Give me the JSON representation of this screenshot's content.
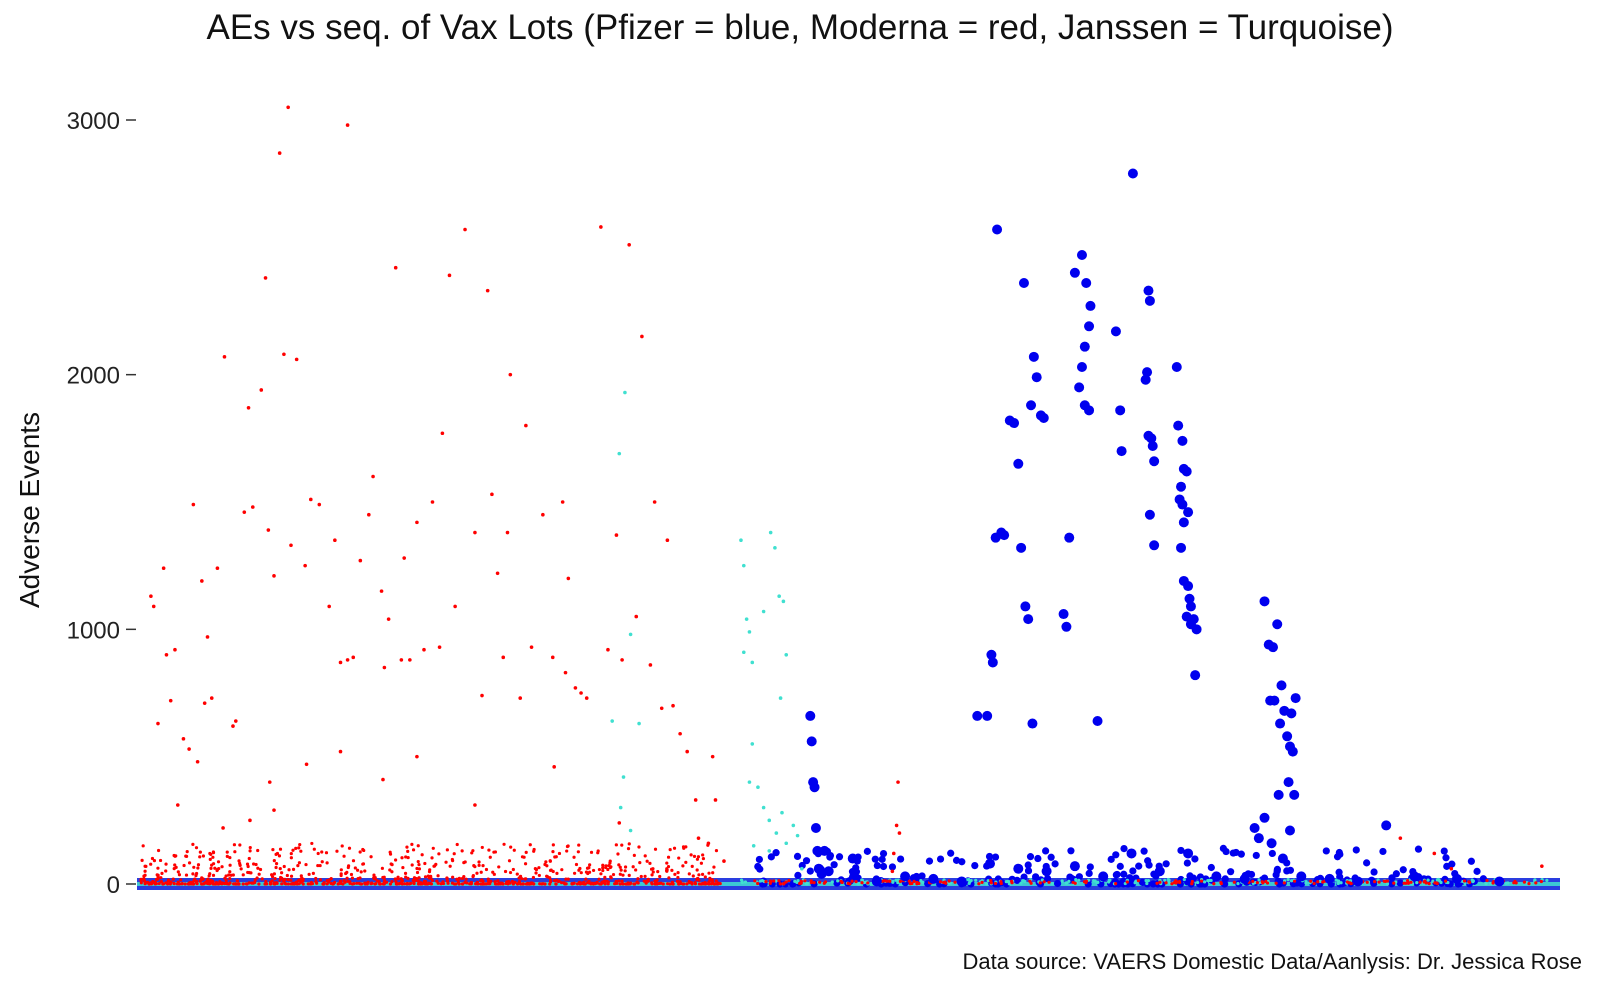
{
  "chart_data": {
    "type": "scatter",
    "title": "AEs vs seq. of Vax Lots (Pfizer = blue, Moderna = red, Janssen = Turquoise)",
    "xlabel": "",
    "ylabel": "Adverse Events",
    "ylim": [
      0,
      3100
    ],
    "xlim": [
      0,
      1000
    ],
    "y_ticks": [
      0,
      1000,
      2000,
      3000
    ],
    "y_tick_labels": [
      "0",
      "1000",
      "2000",
      "3000"
    ],
    "x_ticks_shown": false,
    "grid": false,
    "caption": "Data source: VAERS Domestic Data/Aanlysis: Dr. Jessica Rose",
    "colors": {
      "Pfizer": "#0000ee",
      "Moderna": "#ff0000",
      "Janssen": "#40e0d0"
    },
    "series": [
      {
        "color": "#ff0000",
        "marker_size": "small",
        "points": [
          [
            7,
            1130
          ],
          [
            9,
            1090
          ],
          [
            12,
            630
          ],
          [
            16,
            1240
          ],
          [
            18,
            900
          ],
          [
            21,
            720
          ],
          [
            24,
            920
          ],
          [
            30,
            570
          ],
          [
            34,
            530
          ],
          [
            37,
            1490
          ],
          [
            40,
            480
          ],
          [
            43,
            1190
          ],
          [
            45,
            710
          ],
          [
            47,
            970
          ],
          [
            50,
            730
          ],
          [
            54,
            1240
          ],
          [
            59,
            2070
          ],
          [
            65,
            620
          ],
          [
            67,
            640
          ],
          [
            73,
            1460
          ],
          [
            76,
            1870
          ],
          [
            79,
            1480
          ],
          [
            85,
            1940
          ],
          [
            88,
            2380
          ],
          [
            90,
            1390
          ],
          [
            94,
            1210
          ],
          [
            98,
            2870
          ],
          [
            101,
            2080
          ],
          [
            106,
            1330
          ],
          [
            110,
            2060
          ],
          [
            116,
            1250
          ],
          [
            120,
            1510
          ],
          [
            126,
            1490
          ],
          [
            133,
            1090
          ],
          [
            137,
            1350
          ],
          [
            141,
            870
          ],
          [
            146,
            880
          ],
          [
            150,
            890
          ],
          [
            155,
            1270
          ],
          [
            161,
            1450
          ],
          [
            164,
            1600
          ],
          [
            170,
            1150
          ],
          [
            172,
            850
          ],
          [
            175,
            1040
          ],
          [
            180,
            2420
          ],
          [
            184,
            880
          ],
          [
            186,
            1280
          ],
          [
            190,
            880
          ],
          [
            195,
            1420
          ],
          [
            200,
            920
          ],
          [
            206,
            1500
          ],
          [
            211,
            930
          ],
          [
            213,
            1770
          ],
          [
            218,
            2390
          ],
          [
            222,
            1090
          ],
          [
            229,
            2570
          ],
          [
            236,
            1380
          ],
          [
            241,
            740
          ],
          [
            245,
            2330
          ],
          [
            248,
            1530
          ],
          [
            252,
            1220
          ],
          [
            256,
            890
          ],
          [
            259,
            1380
          ],
          [
            261,
            2000
          ],
          [
            268,
            730
          ],
          [
            272,
            1800
          ],
          [
            276,
            930
          ],
          [
            284,
            1450
          ],
          [
            291,
            890
          ],
          [
            298,
            1500
          ],
          [
            302,
            1200
          ],
          [
            311,
            750
          ],
          [
            315,
            730
          ],
          [
            325,
            2580
          ],
          [
            330,
            920
          ],
          [
            336,
            1370
          ],
          [
            340,
            880
          ],
          [
            345,
            2510
          ],
          [
            350,
            1050
          ],
          [
            354,
            2150
          ],
          [
            360,
            860
          ],
          [
            363,
            1500
          ],
          [
            368,
            690
          ],
          [
            372,
            1350
          ],
          [
            376,
            700
          ],
          [
            381,
            590
          ],
          [
            386,
            520
          ],
          [
            141,
            520
          ],
          [
            171,
            410
          ],
          [
            117,
            470
          ],
          [
            91,
            400
          ],
          [
            94,
            290
          ],
          [
            58,
            220
          ],
          [
            77,
            250
          ],
          [
            26,
            310
          ],
          [
            300,
            830
          ],
          [
            307,
            770
          ],
          [
            104,
            3050
          ],
          [
            146,
            2980
          ],
          [
            195,
            500
          ],
          [
            236,
            310
          ],
          [
            292,
            460
          ],
          [
            338,
            240
          ],
          [
            392,
            330
          ],
          [
            394,
            180
          ],
          [
            401,
            160
          ],
          [
            404,
            500
          ],
          [
            406,
            330
          ],
          [
            412,
            90
          ],
          [
            531,
            50
          ],
          [
            532,
            120
          ],
          [
            534,
            230
          ],
          [
            535,
            400
          ],
          [
            536,
            200
          ],
          [
            914,
            120
          ],
          [
            926,
            60
          ],
          [
            990,
            70
          ],
          [
            890,
            180
          ]
        ]
      },
      {
        "color": "#40e0d0",
        "marker_size": "small",
        "points": [
          [
            338,
            1690
          ],
          [
            342,
            1930
          ],
          [
            346,
            980
          ],
          [
            352,
            630
          ],
          [
            333,
            640
          ],
          [
            341,
            420
          ],
          [
            424,
            1350
          ],
          [
            426,
            1250
          ],
          [
            428,
            1040
          ],
          [
            430,
            990
          ],
          [
            432,
            870
          ],
          [
            426,
            910
          ],
          [
            440,
            1070
          ],
          [
            445,
            1380
          ],
          [
            448,
            1320
          ],
          [
            451,
            1130
          ],
          [
            454,
            1110
          ],
          [
            456,
            900
          ],
          [
            452,
            730
          ],
          [
            432,
            550
          ],
          [
            430,
            400
          ],
          [
            436,
            380
          ],
          [
            440,
            300
          ],
          [
            444,
            250
          ],
          [
            449,
            200
          ],
          [
            453,
            280
          ],
          [
            456,
            160
          ],
          [
            461,
            230
          ],
          [
            464,
            190
          ],
          [
            444,
            130
          ],
          [
            433,
            150
          ],
          [
            467,
            60
          ],
          [
            346,
            210
          ],
          [
            339,
            300
          ]
        ]
      },
      {
        "color": "#0000ee",
        "marker_size": "large",
        "points": [
          [
            473,
            660
          ],
          [
            474,
            560
          ],
          [
            475,
            400
          ],
          [
            476,
            380
          ],
          [
            477,
            220
          ],
          [
            478,
            130
          ],
          [
            479,
            60
          ],
          [
            481,
            40
          ],
          [
            483,
            130
          ],
          [
            486,
            50
          ],
          [
            503,
            100
          ],
          [
            605,
            2570
          ],
          [
            601,
            900
          ],
          [
            602,
            870
          ],
          [
            598,
            660
          ],
          [
            591,
            660
          ],
          [
            604,
            1360
          ],
          [
            608,
            1380
          ],
          [
            610,
            1370
          ],
          [
            614,
            1820
          ],
          [
            617,
            1810
          ],
          [
            620,
            1650
          ],
          [
            622,
            1320
          ],
          [
            625,
            1090
          ],
          [
            627,
            1040
          ],
          [
            630,
            630
          ],
          [
            629,
            1880
          ],
          [
            624,
            2360
          ],
          [
            631,
            2070
          ],
          [
            633,
            1990
          ],
          [
            636,
            1840
          ],
          [
            638,
            1830
          ],
          [
            652,
            1060
          ],
          [
            654,
            1010
          ],
          [
            656,
            1360
          ],
          [
            660,
            2400
          ],
          [
            665,
            2470
          ],
          [
            668,
            2360
          ],
          [
            671,
            2270
          ],
          [
            670,
            2190
          ],
          [
            667,
            2110
          ],
          [
            665,
            2030
          ],
          [
            663,
            1950
          ],
          [
            667,
            1880
          ],
          [
            670,
            1860
          ],
          [
            676,
            640
          ],
          [
            689,
            2170
          ],
          [
            692,
            1860
          ],
          [
            693,
            1700
          ],
          [
            701,
            2790
          ],
          [
            712,
            2330
          ],
          [
            713,
            2290
          ],
          [
            711,
            2010
          ],
          [
            710,
            1980
          ],
          [
            712,
            1760
          ],
          [
            714,
            1750
          ],
          [
            715,
            1720
          ],
          [
            716,
            1660
          ],
          [
            713,
            1450
          ],
          [
            716,
            1330
          ],
          [
            732,
            2030
          ],
          [
            733,
            1800
          ],
          [
            736,
            1740
          ],
          [
            737,
            1630
          ],
          [
            739,
            1620
          ],
          [
            735,
            1560
          ],
          [
            734,
            1510
          ],
          [
            736,
            1490
          ],
          [
            737,
            1420
          ],
          [
            740,
            1460
          ],
          [
            737,
            1190
          ],
          [
            740,
            1170
          ],
          [
            741,
            1120
          ],
          [
            742,
            1090
          ],
          [
            744,
            1040
          ],
          [
            746,
            1000
          ],
          [
            745,
            820
          ],
          [
            735,
            1320
          ],
          [
            739,
            1050
          ],
          [
            742,
            1020
          ],
          [
            794,
            1110
          ],
          [
            797,
            940
          ],
          [
            800,
            930
          ],
          [
            803,
            1020
          ],
          [
            798,
            720
          ],
          [
            801,
            720
          ],
          [
            806,
            780
          ],
          [
            808,
            680
          ],
          [
            813,
            670
          ],
          [
            816,
            730
          ],
          [
            810,
            580
          ],
          [
            812,
            540
          ],
          [
            814,
            520
          ],
          [
            811,
            400
          ],
          [
            815,
            350
          ],
          [
            804,
            350
          ],
          [
            805,
            630
          ],
          [
            794,
            260
          ],
          [
            799,
            160
          ],
          [
            807,
            100
          ],
          [
            812,
            210
          ],
          [
            787,
            220
          ],
          [
            790,
            180
          ],
          [
            880,
            230
          ],
          [
            520,
            10
          ],
          [
            540,
            30
          ],
          [
            560,
            20
          ],
          [
            580,
            10
          ],
          [
            600,
            80
          ],
          [
            620,
            60
          ],
          [
            640,
            50
          ],
          [
            660,
            70
          ],
          [
            680,
            30
          ],
          [
            700,
            120
          ],
          [
            720,
            50
          ],
          [
            740,
            120
          ],
          [
            760,
            30
          ],
          [
            780,
            20
          ],
          [
            820,
            30
          ],
          [
            840,
            20
          ],
          [
            860,
            10
          ],
          [
            900,
            30
          ],
          [
            930,
            20
          ],
          [
            960,
            10
          ]
        ]
      }
    ]
  }
}
